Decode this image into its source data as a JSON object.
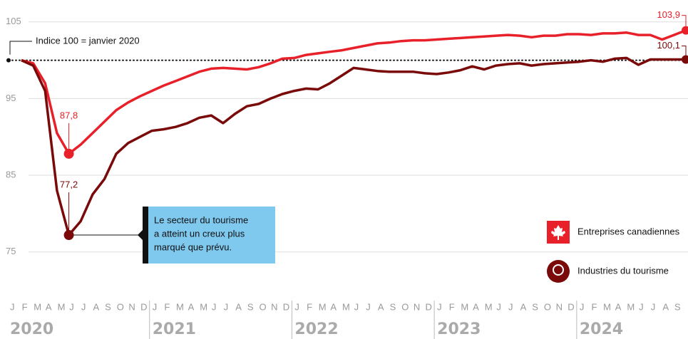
{
  "chart_data": {
    "type": "line",
    "annotation": "Indice 100 = janvier 2020",
    "callout": [
      "Le secteur du tourisme",
      "a atteint un creux plus",
      "marqué que prévu."
    ],
    "reference": 100,
    "categories": [
      "J",
      "F",
      "M",
      "A",
      "M",
      "J",
      "J",
      "A",
      "S",
      "O",
      "N",
      "D",
      "J",
      "F",
      "M",
      "A",
      "M",
      "J",
      "J",
      "A",
      "S",
      "O",
      "N",
      "D",
      "J",
      "F",
      "M",
      "A",
      "M",
      "J",
      "J",
      "A",
      "S",
      "O",
      "N",
      "D",
      "J",
      "F",
      "M",
      "A",
      "M",
      "J",
      "J",
      "A",
      "S",
      "O",
      "N",
      "D",
      "J",
      "F",
      "M",
      "A",
      "M",
      "J",
      "J",
      "A",
      "S"
    ],
    "years": [
      "2020",
      "2021",
      "2022",
      "2023",
      "2024"
    ],
    "series": [
      {
        "name": "Entreprises canadiennes",
        "color": "#e8202a",
        "values": [
          100,
          99.6,
          97,
          90.5,
          87.8,
          89,
          90.5,
          92,
          93.5,
          94.5,
          95.3,
          96,
          96.7,
          97.3,
          97.9,
          98.5,
          98.9,
          99,
          98.9,
          98.8,
          99.1,
          99.6,
          100.2,
          100.3,
          100.7,
          100.9,
          101.1,
          101.3,
          101.6,
          101.9,
          102.2,
          102.3,
          102.5,
          102.6,
          102.6,
          102.7,
          102.8,
          102.9,
          103.0,
          103.1,
          103.2,
          103.3,
          103.2,
          103.0,
          103.2,
          103.2,
          103.4,
          103.4,
          103.3,
          103.5,
          103.5,
          103.6,
          103.3,
          103.3,
          102.7,
          103.3,
          103.9
        ],
        "value_labels": [
          null,
          null,
          null,
          null,
          "87,8",
          null,
          null,
          null,
          null,
          null,
          null,
          null,
          null,
          null,
          null,
          null,
          null,
          null,
          null,
          null,
          null,
          null,
          null,
          null,
          null,
          null,
          null,
          null,
          null,
          null,
          null,
          null,
          null,
          null,
          null,
          null,
          null,
          null,
          null,
          null,
          null,
          null,
          null,
          null,
          null,
          null,
          null,
          null,
          null,
          null,
          null,
          null,
          null,
          null,
          null,
          null,
          "103,9"
        ]
      },
      {
        "name": "Industries du tourisme",
        "color": "#7a0a0a",
        "values": [
          100,
          99.3,
          96,
          83,
          77.2,
          79,
          82.5,
          84.5,
          87.8,
          89.2,
          90,
          90.8,
          91,
          91.3,
          91.8,
          92.5,
          92.8,
          91.8,
          93,
          94,
          94.3,
          95,
          95.6,
          96,
          96.3,
          96.2,
          97,
          98,
          99,
          98.8,
          98.6,
          98.5,
          98.5,
          98.5,
          98.3,
          98.2,
          98.4,
          98.7,
          99.2,
          98.8,
          99.3,
          99.5,
          99.6,
          99.3,
          99.5,
          99.6,
          99.7,
          99.8,
          100,
          99.8,
          100.2,
          100.3,
          99.4,
          100.1,
          100.1,
          100.1,
          100.1
        ],
        "value_labels": [
          null,
          null,
          null,
          null,
          "77,2",
          null,
          null,
          null,
          null,
          null,
          null,
          null,
          null,
          null,
          null,
          null,
          null,
          null,
          null,
          null,
          null,
          null,
          null,
          null,
          null,
          null,
          null,
          null,
          null,
          null,
          null,
          null,
          null,
          null,
          null,
          null,
          null,
          null,
          null,
          null,
          null,
          null,
          null,
          null,
          null,
          null,
          null,
          null,
          null,
          null,
          null,
          null,
          null,
          null,
          null,
          null,
          "100,1"
        ]
      }
    ],
    "ylim": [
      72,
      106
    ],
    "yticks": [
      75,
      85,
      95,
      105
    ],
    "grid": true
  }
}
